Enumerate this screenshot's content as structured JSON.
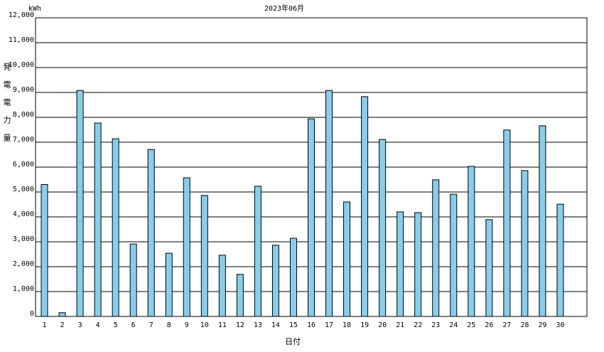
{
  "chart_data": {
    "type": "bar",
    "title": "2023年06月",
    "unit": "kWh",
    "y_label": "発電電力量",
    "x_label": "日付",
    "categories": [
      "1",
      "2",
      "3",
      "4",
      "5",
      "6",
      "7",
      "8",
      "9",
      "10",
      "11",
      "12",
      "13",
      "14",
      "15",
      "16",
      "17",
      "18",
      "19",
      "20",
      "21",
      "22",
      "23",
      "24",
      "25",
      "26",
      "27",
      "28",
      "29",
      "30"
    ],
    "values": [
      5300,
      150,
      9080,
      7770,
      7140,
      2910,
      6710,
      2540,
      5570,
      4860,
      2460,
      1690,
      5230,
      2860,
      3140,
      7940,
      9080,
      4600,
      8830,
      7110,
      4200,
      4170,
      5490,
      4910,
      6030,
      3890,
      7490,
      5860,
      7660,
      4510
    ],
    "color": "#87ceeb",
    "ylim": [
      0,
      12000
    ],
    "yticks": [
      0,
      {
        "value": 1000,
        "label": "1,000"
      },
      {
        "value": 2000,
        "label": "2,000"
      },
      {
        "value": 3000,
        "label": "3,000"
      },
      {
        "value": 4000,
        "label": "4,000"
      },
      {
        "value": 5000,
        "label": "5,000"
      },
      {
        "value": 6000,
        "label": "6,000"
      },
      {
        "value": 7000,
        "label": "7,000"
      },
      {
        "value": 8000,
        "label": "8,000"
      },
      {
        "value": 9000,
        "label": "9,000"
      },
      {
        "value": 10000,
        "label": "10,000"
      },
      {
        "value": 11000,
        "label": "11,000"
      },
      {
        "value": 12000,
        "label": "12,000"
      }
    ],
    "grid": true
  }
}
